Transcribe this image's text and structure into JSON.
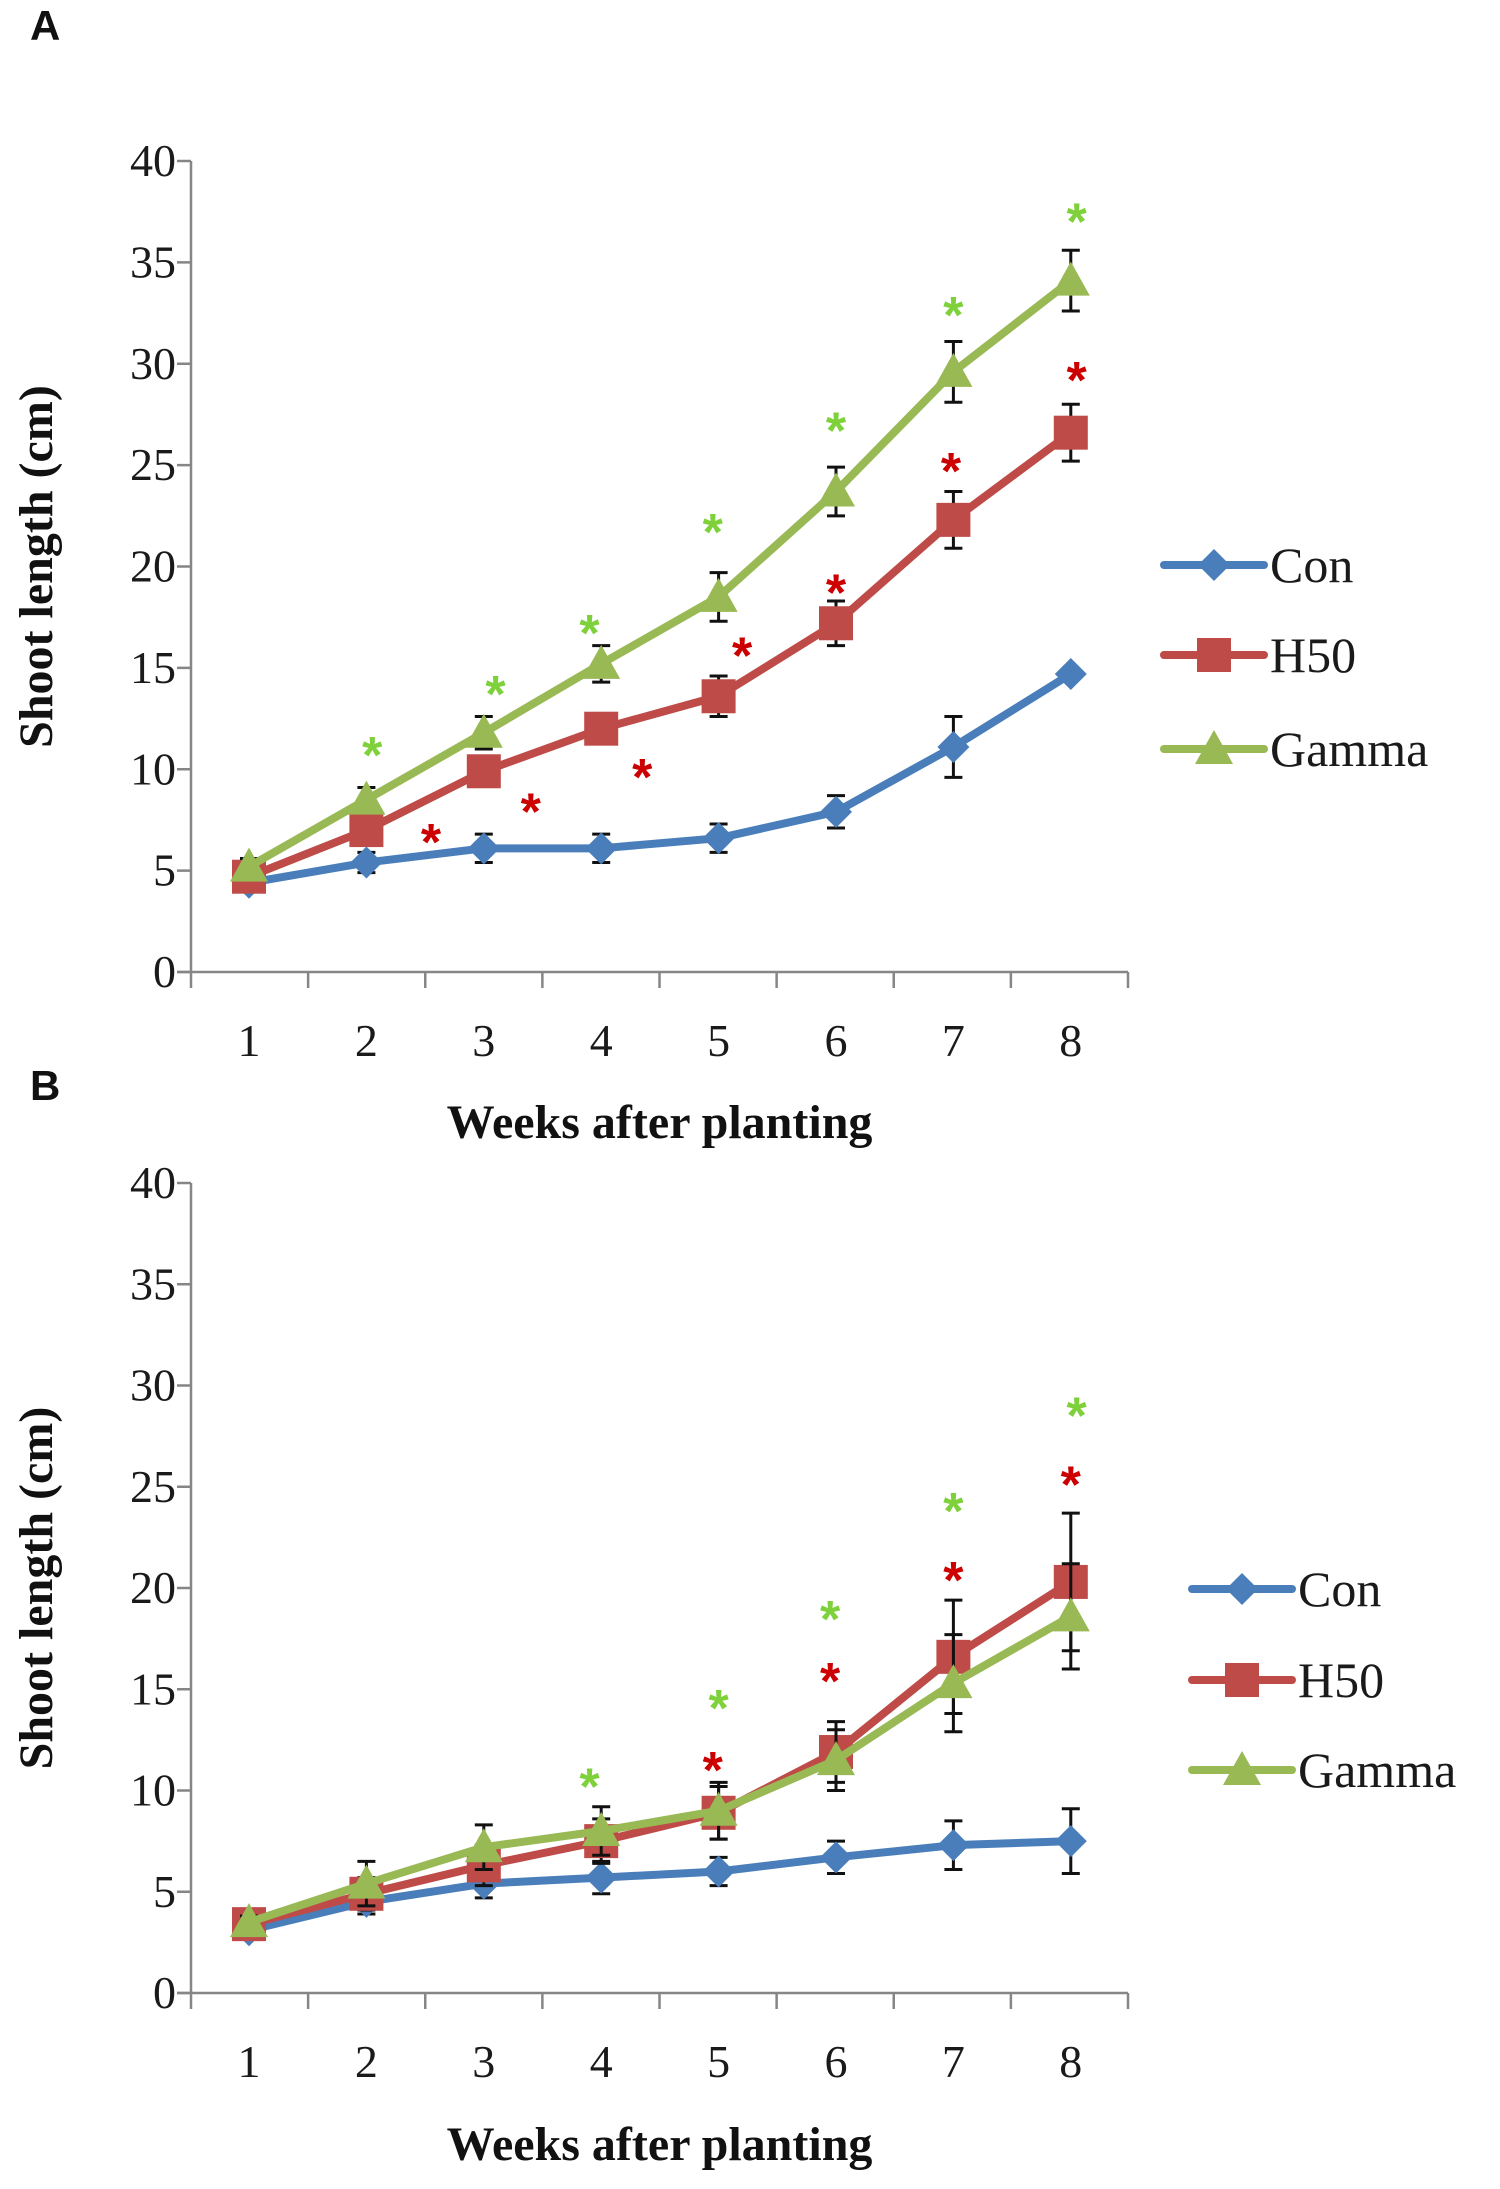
{
  "colors": {
    "Con": "#4a7ebb",
    "H50": "#be4b48",
    "Gamma": "#98b954",
    "ast_red": "#cc0000",
    "ast_green": "#7fd13b"
  },
  "chart_data": [
    {
      "panel": "A",
      "type": "line",
      "xlabel": "Weeks after planting",
      "ylabel": "Shoot length (cm)",
      "x": [
        1,
        2,
        3,
        4,
        5,
        6,
        7,
        8
      ],
      "ylim": [
        0,
        40
      ],
      "yticks": [
        0,
        5,
        10,
        15,
        20,
        25,
        30,
        35,
        40
      ],
      "grid": false,
      "legend": "right",
      "series": [
        {
          "name": "Con",
          "marker": "diamond",
          "values": [
            4.4,
            5.4,
            6.1,
            6.1,
            6.6,
            7.9,
            11.1,
            14.7
          ],
          "errors": [
            0.3,
            0.5,
            0.7,
            0.7,
            0.7,
            0.8,
            1.5,
            0.2
          ]
        },
        {
          "name": "H50",
          "marker": "square",
          "values": [
            4.7,
            7.0,
            9.9,
            12.0,
            13.6,
            17.2,
            22.3,
            26.6
          ],
          "errors": [
            0.3,
            0.5,
            0.7,
            0.5,
            1.0,
            1.1,
            1.4,
            1.4
          ]
        },
        {
          "name": "Gamma",
          "marker": "triangle",
          "values": [
            5.2,
            8.5,
            11.8,
            15.2,
            18.5,
            23.7,
            29.6,
            34.1
          ],
          "errors": [
            0.4,
            0.6,
            0.8,
            0.9,
            1.2,
            1.2,
            1.5,
            1.5
          ]
        }
      ],
      "annotations": [
        {
          "text": "*",
          "color": "green",
          "x": 2.05,
          "y": 11.3
        },
        {
          "text": "*",
          "color": "green",
          "x": 3.1,
          "y": 14.3
        },
        {
          "text": "*",
          "color": "green",
          "x": 3.9,
          "y": 17.3
        },
        {
          "text": "*",
          "color": "green",
          "x": 4.95,
          "y": 22.3
        },
        {
          "text": "*",
          "color": "green",
          "x": 6.0,
          "y": 27.3
        },
        {
          "text": "*",
          "color": "green",
          "x": 7.0,
          "y": 33.0
        },
        {
          "text": "*",
          "color": "green",
          "x": 8.05,
          "y": 37.6
        },
        {
          "text": "*",
          "color": "red",
          "x": 2.55,
          "y": 7.0
        },
        {
          "text": "*",
          "color": "red",
          "x": 3.4,
          "y": 8.5
        },
        {
          "text": "*",
          "color": "red",
          "x": 4.35,
          "y": 10.2
        },
        {
          "text": "*",
          "color": "red",
          "x": 5.2,
          "y": 16.2
        },
        {
          "text": "*",
          "color": "red",
          "x": 6.0,
          "y": 19.3
        },
        {
          "text": "*",
          "color": "red",
          "x": 6.98,
          "y": 25.3
        },
        {
          "text": "*",
          "color": "red",
          "x": 8.05,
          "y": 29.8
        }
      ]
    },
    {
      "panel": "B",
      "type": "line",
      "xlabel": "Weeks after planting",
      "ylabel": "Shoot length (cm)",
      "x": [
        1,
        2,
        3,
        4,
        5,
        6,
        7,
        8
      ],
      "ylim": [
        0,
        40
      ],
      "yticks": [
        0,
        5,
        10,
        15,
        20,
        25,
        30,
        35,
        40
      ],
      "grid": false,
      "legend": "right",
      "series": [
        {
          "name": "Con",
          "marker": "diamond",
          "values": [
            3.1,
            4.5,
            5.4,
            5.7,
            6.0,
            6.7,
            7.3,
            7.5
          ],
          "errors": [
            0.3,
            0.6,
            0.7,
            0.8,
            0.7,
            0.8,
            1.2,
            1.6
          ]
        },
        {
          "name": "H50",
          "marker": "square",
          "values": [
            3.4,
            4.9,
            6.3,
            7.5,
            8.9,
            11.9,
            16.6,
            20.3
          ],
          "errors": [
            0.3,
            0.8,
            1.0,
            1.1,
            1.3,
            1.5,
            2.8,
            3.4
          ]
        },
        {
          "name": "Gamma",
          "marker": "triangle",
          "values": [
            3.5,
            5.4,
            7.2,
            8.0,
            9.0,
            11.5,
            15.3,
            18.6
          ],
          "errors": [
            0.3,
            1.1,
            1.1,
            1.2,
            1.4,
            1.5,
            2.4,
            2.6
          ]
        }
      ],
      "annotations": [
        {
          "text": "*",
          "color": "green",
          "x": 3.9,
          "y": 10.8
        },
        {
          "text": "*",
          "color": "green",
          "x": 5.0,
          "y": 14.0
        },
        {
          "text": "*",
          "color": "green",
          "x": 5.95,
          "y": 18.5
        },
        {
          "text": "*",
          "color": "green",
          "x": 7.0,
          "y": 24.4
        },
        {
          "text": "*",
          "color": "green",
          "x": 8.05,
          "y": 29.1
        },
        {
          "text": "*",
          "color": "red",
          "x": 4.95,
          "y": 11.6
        },
        {
          "text": "*",
          "color": "red",
          "x": 5.95,
          "y": 16.0
        },
        {
          "text": "*",
          "color": "red",
          "x": 7.0,
          "y": 21.0
        },
        {
          "text": "*",
          "color": "red",
          "x": 8.0,
          "y": 25.7
        }
      ]
    }
  ]
}
